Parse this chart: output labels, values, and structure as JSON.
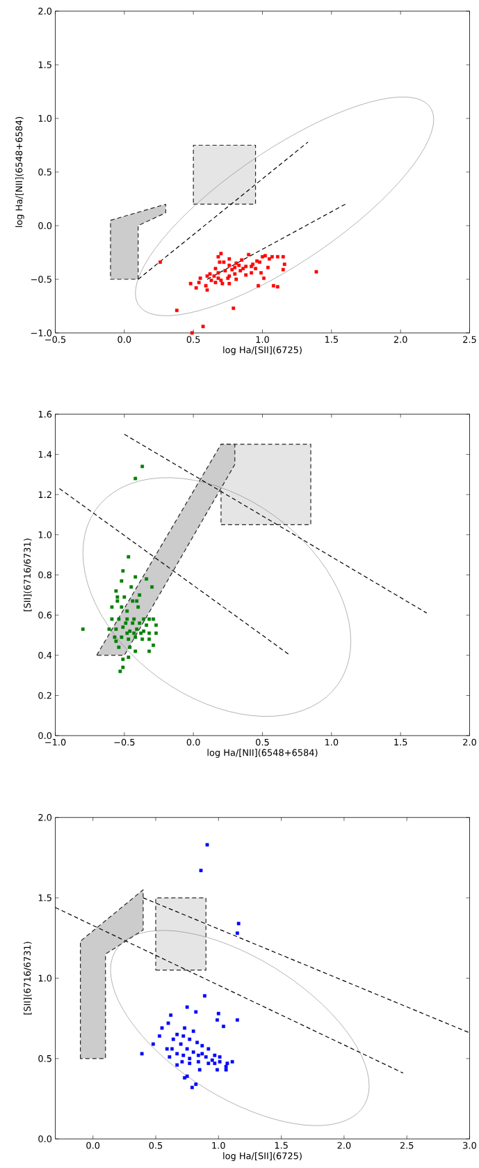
{
  "chart_data": [
    {
      "type": "scatter",
      "xlabel": "log Ha/[SII](6725)",
      "ylabel": "log Ha/[NII](6548+6584)",
      "xlim": [
        -0.5,
        2.5
      ],
      "ylim": [
        -1.0,
        2.0
      ],
      "xticks": [
        {
          "value": -0.5,
          "label": "−0.5"
        },
        {
          "value": 0,
          "label": "0.0"
        },
        0.5,
        {
          "value": 1,
          "label": "1.0"
        },
        1.5,
        {
          "value": 2,
          "label": "2.0"
        },
        2.5
      ],
      "yticks": [
        {
          "value": -1,
          "label": "−1.0"
        },
        {
          "value": -0.5,
          "label": "−0.5"
        },
        {
          "value": 0,
          "label": "0.0"
        },
        0.5,
        {
          "value": 1,
          "label": "1.0"
        },
        1.5,
        {
          "value": 2,
          "label": "2.0"
        }
      ],
      "series": [
        {
          "type": "area",
          "color": "#cccccc",
          "line_style": "dashed",
          "x": [
            -0.1,
            0.3,
            0.3,
            0.1,
            0.1,
            -0.1
          ],
          "values": [
            0.05,
            0.2,
            0.12,
            0.0,
            -0.5,
            -0.5
          ]
        },
        {
          "type": "area",
          "color": "#e5e5e5",
          "line_style": "dashed",
          "x": [
            0.5,
            0.95,
            0.95,
            0.5
          ],
          "values": [
            0.2,
            0.2,
            0.75,
            0.75
          ]
        },
        {
          "type": "line",
          "color": "#000000",
          "line_style": "dashed",
          "x": [
            0.1,
            1.33
          ],
          "values": [
            -0.5,
            0.78
          ]
        },
        {
          "type": "line",
          "color": "#000000",
          "line_style": "dashed",
          "x": [
            0.6,
            1.6
          ],
          "values": [
            -0.5,
            0.2
          ]
        },
        {
          "type": "scatter",
          "color": "#ff0000",
          "marker": "square",
          "x": [
            0.26,
            0.38,
            0.57,
            0.49,
            0.79,
            1.39,
            1.15,
            1.16,
            1.15,
            1.08,
            1.11,
            0.97,
            1.01,
            0.99,
            1.04,
            1.11,
            1.07,
            1.02,
            1.0,
            0.48,
            0.52,
            0.54,
            0.55,
            0.59,
            0.6,
            0.6,
            0.62,
            0.68,
            0.7,
            0.69,
            0.72,
            0.76,
            0.66,
            0.68,
            0.71,
            0.76,
            0.81,
            0.76,
            0.78,
            0.81,
            0.85,
            0.9,
            0.88,
            0.88,
            0.92,
            0.93,
            0.96,
            0.95,
            0.84,
            0.73,
            0.65,
            0.63,
            0.7,
            0.75,
            0.8,
            0.86,
            0.92,
            0.98,
            1.05,
            0.8,
            0.76,
            0.83,
            0.68,
            0.66
          ],
          "values": [
            -0.34,
            -0.79,
            -0.94,
            -1.0,
            -0.77,
            -0.43,
            -0.29,
            -0.36,
            -0.41,
            -0.56,
            -0.57,
            -0.56,
            -0.49,
            -0.44,
            -0.39,
            -0.29,
            -0.29,
            -0.28,
            -0.29,
            -0.54,
            -0.58,
            -0.53,
            -0.49,
            -0.56,
            -0.6,
            -0.47,
            -0.45,
            -0.29,
            -0.26,
            -0.34,
            -0.34,
            -0.31,
            -0.4,
            -0.49,
            -0.54,
            -0.54,
            -0.5,
            -0.47,
            -0.41,
            -0.35,
            -0.32,
            -0.27,
            -0.38,
            -0.46,
            -0.44,
            -0.36,
            -0.33,
            -0.4,
            -0.42,
            -0.42,
            -0.47,
            -0.51,
            -0.51,
            -0.49,
            -0.45,
            -0.4,
            -0.38,
            -0.34,
            -0.31,
            -0.39,
            -0.37,
            -0.37,
            -0.44,
            -0.53
          ]
        }
      ]
    },
    {
      "type": "scatter",
      "xlabel": "log Ha/[NII](6548+6584)",
      "ylabel": "[SII](6716/6731)",
      "xlim": [
        -1.0,
        2.0
      ],
      "ylim": [
        0.0,
        1.6
      ],
      "xticks": [
        {
          "value": -1,
          "label": "−1.0"
        },
        {
          "value": -0.5,
          "label": "−0.5"
        },
        {
          "value": 0,
          "label": "0.0"
        },
        0.5,
        {
          "value": 1,
          "label": "1.0"
        },
        1.5,
        {
          "value": 2,
          "label": "2.0"
        }
      ],
      "yticks": [
        {
          "value": 0,
          "label": "0.0"
        },
        0.2,
        0.4,
        0.6,
        0.8,
        {
          "value": 1,
          "label": "1.0"
        },
        1.2,
        1.4,
        1.6
      ],
      "series": [
        {
          "type": "area",
          "color": "#e5e5e5",
          "line_style": "dashed",
          "x": [
            0.2,
            0.85,
            0.85,
            0.2
          ],
          "values": [
            1.05,
            1.05,
            1.45,
            1.45
          ]
        },
        {
          "type": "area",
          "color": "#cccccc",
          "line_style": "dashed",
          "x": [
            -0.7,
            0.2,
            0.3,
            0.3,
            -0.5
          ],
          "values": [
            0.4,
            1.45,
            1.45,
            1.35,
            0.4
          ]
        },
        {
          "type": "line",
          "color": "#000000",
          "line_style": "dashed",
          "x": [
            -0.5,
            1.69
          ],
          "values": [
            1.5,
            0.61
          ]
        },
        {
          "type": "line",
          "color": "#000000",
          "line_style": "dashed",
          "x": [
            -0.97,
            0.7
          ],
          "values": [
            1.23,
            0.4
          ]
        },
        {
          "type": "scatter",
          "color": "#008000",
          "marker": "square",
          "x": [
            -0.37,
            -0.42,
            -0.8,
            -0.47,
            -0.51,
            -0.52,
            -0.42,
            -0.34,
            -0.3,
            -0.45,
            -0.56,
            -0.39,
            -0.55,
            -0.5,
            -0.55,
            -0.44,
            -0.41,
            -0.59,
            -0.52,
            -0.4,
            -0.48,
            -0.59,
            -0.54,
            -0.48,
            -0.43,
            -0.36,
            -0.32,
            -0.27,
            -0.29,
            -0.61,
            -0.56,
            -0.51,
            -0.46,
            -0.41,
            -0.36,
            -0.32,
            -0.27,
            -0.57,
            -0.52,
            -0.47,
            -0.42,
            -0.37,
            -0.32,
            -0.29,
            -0.56,
            -0.54,
            -0.46,
            -0.42,
            -0.32,
            -0.47,
            -0.51,
            -0.51,
            -0.53,
            -0.49,
            -0.44,
            -0.39,
            -0.34,
            -0.48,
            -0.43,
            -0.38
          ],
          "values": [
            1.34,
            1.28,
            0.53,
            0.89,
            0.82,
            0.77,
            0.79,
            0.78,
            0.74,
            0.74,
            0.72,
            0.7,
            0.69,
            0.69,
            0.67,
            0.67,
            0.67,
            0.64,
            0.64,
            0.64,
            0.62,
            0.58,
            0.58,
            0.58,
            0.58,
            0.58,
            0.58,
            0.55,
            0.58,
            0.53,
            0.53,
            0.54,
            0.52,
            0.53,
            0.52,
            0.51,
            0.51,
            0.49,
            0.49,
            0.48,
            0.49,
            0.48,
            0.48,
            0.45,
            0.47,
            0.44,
            0.44,
            0.42,
            0.42,
            0.39,
            0.38,
            0.34,
            0.32,
            0.56,
            0.56,
            0.56,
            0.55,
            0.51,
            0.51,
            0.51
          ]
        }
      ]
    },
    {
      "type": "scatter",
      "xlabel": "log Ha/[SII](6725)",
      "ylabel": "[SII](6716/6731)",
      "xlim": [
        -0.3,
        3.0
      ],
      "ylim": [
        0.0,
        2.0
      ],
      "xticks": [
        {
          "value": 0,
          "label": "0.0"
        },
        0.5,
        {
          "value": 1,
          "label": "1.0"
        },
        1.5,
        {
          "value": 2,
          "label": "2.0"
        },
        2.5,
        {
          "value": 3,
          "label": "3.0"
        }
      ],
      "yticks": [
        {
          "value": 0,
          "label": "0.0"
        },
        0.5,
        {
          "value": 1,
          "label": "1.0"
        },
        1.5,
        {
          "value": 2,
          "label": "2.0"
        }
      ],
      "series": [
        {
          "type": "area",
          "color": "#cccccc",
          "line_style": "dashed",
          "x": [
            -0.1,
            -0.1,
            0.4,
            0.4,
            0.1,
            0.1
          ],
          "values": [
            0.5,
            1.23,
            1.55,
            1.3,
            1.15,
            0.5
          ]
        },
        {
          "type": "area",
          "color": "#e5e5e5",
          "line_style": "dashed",
          "x": [
            0.5,
            0.9,
            0.9,
            0.5
          ],
          "values": [
            1.05,
            1.05,
            1.5,
            1.5
          ]
        },
        {
          "type": "line",
          "color": "#000000",
          "line_style": "dashed",
          "x": [
            0.4,
            3.0
          ],
          "values": [
            1.5,
            0.66
          ]
        },
        {
          "type": "line",
          "color": "#000000",
          "line_style": "dashed",
          "x": [
            -0.3,
            2.47
          ],
          "values": [
            1.44,
            0.41
          ]
        },
        {
          "type": "scatter",
          "color": "#0000ff",
          "marker": "square",
          "x": [
            0.91,
            0.86,
            1.16,
            1.15,
            0.89,
            0.75,
            0.82,
            1.0,
            0.99,
            1.15,
            1.04,
            0.62,
            0.6,
            0.55,
            0.73,
            0.8,
            0.39,
            0.48,
            0.53,
            0.59,
            0.67,
            0.73,
            0.75,
            0.79,
            0.82,
            0.85,
            0.99,
            1.06,
            1.06,
            1.11,
            1.07,
            1.01,
            0.97,
            0.92,
            0.87,
            0.83,
            0.77,
            0.72,
            0.67,
            0.64,
            0.7,
            0.75,
            0.8,
            0.84,
            0.9,
            0.95,
            1.01,
            0.72,
            0.77,
            0.84,
            0.92,
            0.63,
            0.67,
            0.61,
            0.71,
            0.77,
            0.97,
            0.87
          ],
          "values": [
            1.83,
            1.67,
            1.34,
            1.28,
            0.89,
            0.82,
            0.79,
            0.78,
            0.74,
            0.74,
            0.7,
            0.77,
            0.72,
            0.69,
            0.69,
            0.67,
            0.53,
            0.59,
            0.64,
            0.56,
            0.46,
            0.38,
            0.39,
            0.32,
            0.34,
            0.43,
            0.43,
            0.43,
            0.45,
            0.48,
            0.47,
            0.51,
            0.52,
            0.56,
            0.58,
            0.6,
            0.62,
            0.64,
            0.65,
            0.62,
            0.59,
            0.56,
            0.54,
            0.52,
            0.51,
            0.49,
            0.48,
            0.52,
            0.5,
            0.48,
            0.47,
            0.56,
            0.53,
            0.51,
            0.48,
            0.47,
            0.47,
            0.53
          ]
        }
      ]
    }
  ]
}
